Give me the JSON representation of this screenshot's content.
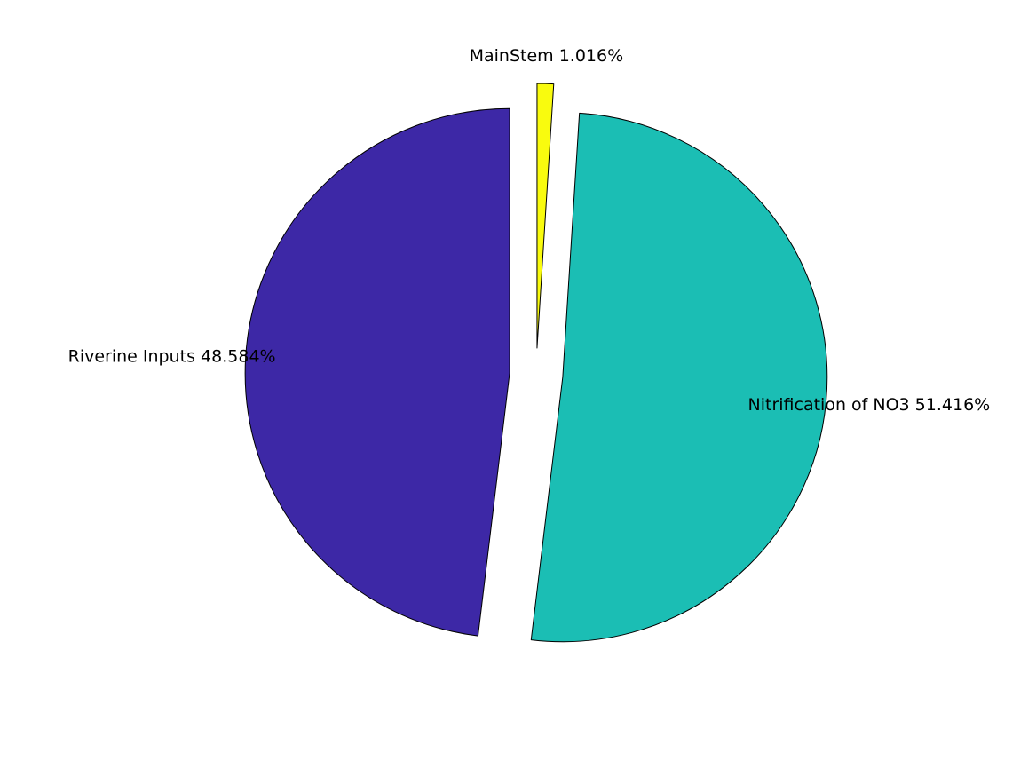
{
  "chart_data": {
    "type": "pie",
    "title": "",
    "slices": [
      {
        "name": "MainStem",
        "value": 1.016,
        "label": "MainStem 1.016%",
        "color": "#F9FB0E",
        "exploded": true
      },
      {
        "name": "Nitrification of NO3",
        "value": 51.416,
        "label": "Nitrification of NO3 51.416%",
        "color": "#1BBEB4",
        "exploded": true
      },
      {
        "name": "Riverine Inputs",
        "value": 48.584,
        "label": "Riverine Inputs 48.584%",
        "color": "#3D28A6",
        "exploded": true
      }
    ],
    "start_angle_deg": 90,
    "direction": "clockwise"
  }
}
